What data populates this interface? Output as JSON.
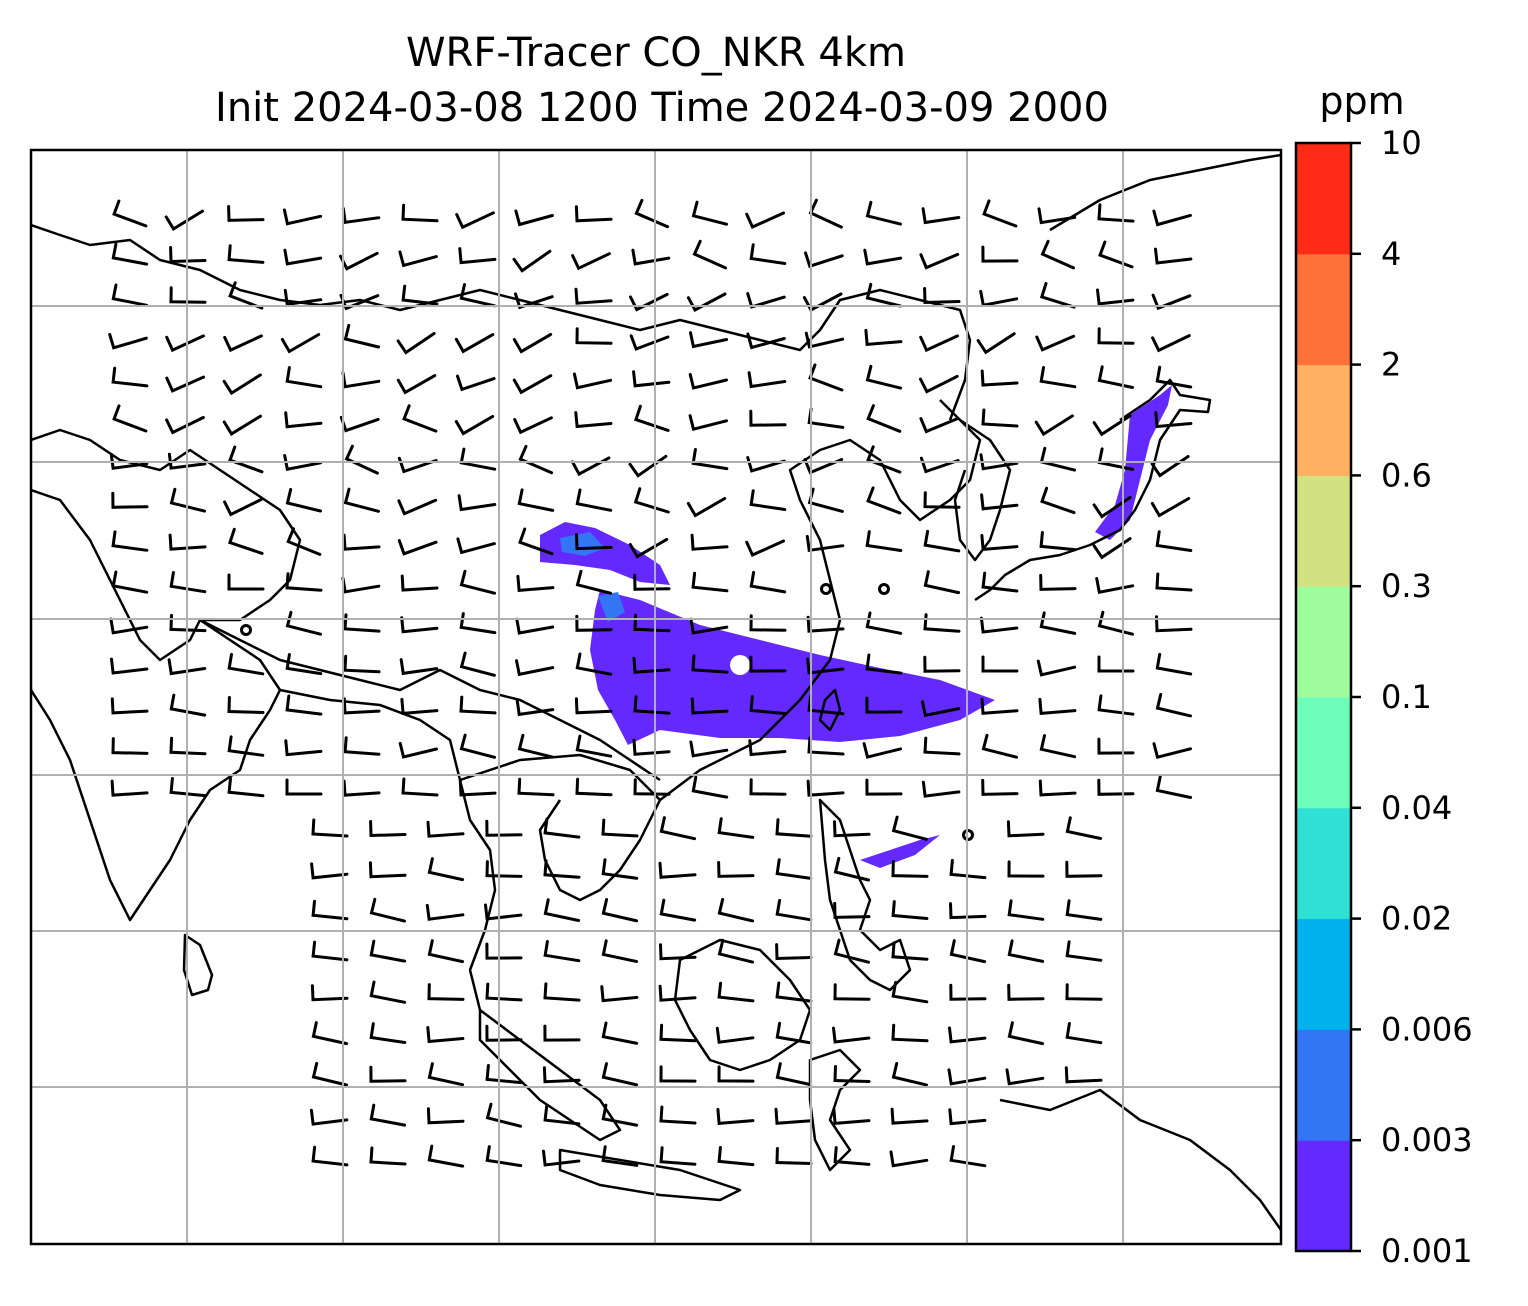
{
  "chart_data": {
    "type": "heatmap",
    "title": "WRF-Tracer CO_NKR 4km",
    "subtitle": "Init 2024-03-08 1200 Time 2024-03-09 2000",
    "xlabel": "",
    "ylabel": "",
    "grid": true,
    "colorbar": {
      "unit": "ppm",
      "placement": "right",
      "levels": [
        "0.001",
        "0.003",
        "0.006",
        "0.02",
        "0.04",
        "0.1",
        "0.3",
        "0.6",
        "2",
        "4",
        "10"
      ],
      "colors": [
        "#6429fe",
        "#3276f4",
        "#02b2ec",
        "#2fe0d4",
        "#6cfdbb",
        "#9ffc9d",
        "#d2e283",
        "#ffb061",
        "#ff7138",
        "#ff2b16"
      ]
    },
    "overlays": [
      "coastlines",
      "wind-barbs"
    ],
    "plume_max_level": "0.006"
  }
}
